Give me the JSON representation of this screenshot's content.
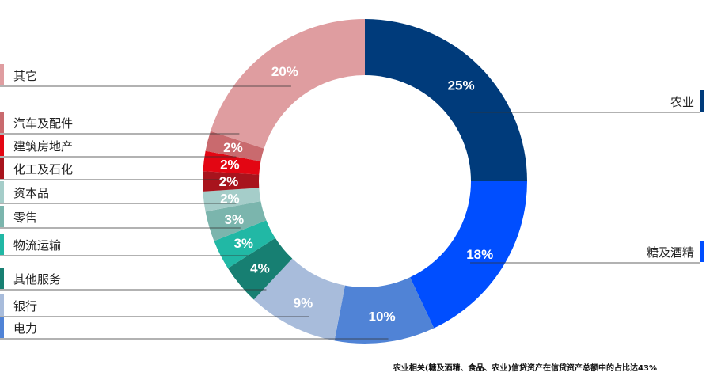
{
  "chart_data": {
    "type": "pie",
    "subtype": "donut",
    "slices": [
      {
        "label": "农业",
        "value": 25,
        "value_label": "25%",
        "color": "#003b7b"
      },
      {
        "label": "糖及酒精",
        "value": 18,
        "value_label": "18%",
        "color": "#004eff"
      },
      {
        "label": "电力",
        "value": 10,
        "value_label": "10%",
        "color": "#5083d6"
      },
      {
        "label": "银行",
        "value": 9,
        "value_label": "9%",
        "color": "#a8bcdb"
      },
      {
        "label": "其他服务",
        "value": 4,
        "value_label": "4%",
        "color": "#177f72"
      },
      {
        "label": "物流运输",
        "value": 3,
        "value_label": "3%",
        "color": "#21b8a5"
      },
      {
        "label": "零售",
        "value": 3,
        "value_label": "3%",
        "color": "#7bb5ad"
      },
      {
        "label": "资本品",
        "value": 2,
        "value_label": "2%",
        "color": "#a5cdc9"
      },
      {
        "label": "化工及石化",
        "value": 2,
        "value_label": "2%",
        "color": "#a8141d"
      },
      {
        "label": "建筑房地产",
        "value": 2,
        "value_label": "2%",
        "color": "#e30613"
      },
      {
        "label": "汽车及配件",
        "value": 2,
        "value_label": "2%",
        "color": "#c96a6e"
      },
      {
        "label": "其它",
        "value": 20,
        "value_label": "20%",
        "color": "#df9da0"
      }
    ],
    "footnote": "农业相关(糖及酒精、食品、农业)信贷资产在信贷资产总额中的占比达43%"
  }
}
